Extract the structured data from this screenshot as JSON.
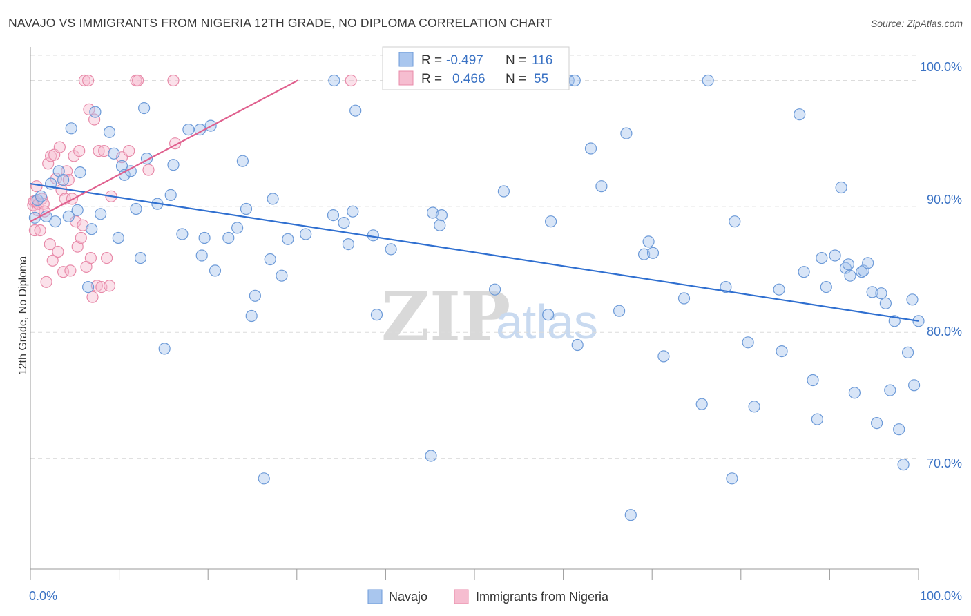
{
  "header": {
    "title": "NAVAJO VS IMMIGRANTS FROM NIGERIA 12TH GRADE, NO DIPLOMA CORRELATION CHART",
    "source": "Source: ZipAtlas.com"
  },
  "watermark": {
    "zip": "ZIP",
    "atlas": "atlas"
  },
  "legend_stats": [
    {
      "r_label": "R =",
      "r_value": "-0.497",
      "n_label": "N =",
      "n_value": "116"
    },
    {
      "r_label": "R =",
      "r_value": "0.466",
      "n_label": "N =",
      "n_value": "55"
    }
  ],
  "colors": {
    "navajo_fill": "#a9c6ee",
    "navajo_stroke": "#6c9ad8",
    "navajo_line": "#2f6fd0",
    "nigeria_fill": "#f6bdd0",
    "nigeria_stroke": "#e88aa9",
    "nigeria_line": "#e0608e",
    "tick_text": "#3a72c4",
    "grid": "#dcdcdc"
  },
  "chart_data": {
    "type": "scatter",
    "xlabel": "",
    "ylabel": "12th Grade, No Diploma",
    "x_ticks": [
      "0.0%",
      "100.0%"
    ],
    "y_ticks": [
      "100.0%",
      "90.0%",
      "80.0%",
      "70.0%"
    ],
    "y_tick_values": [
      100,
      90,
      80,
      70
    ],
    "xlim": [
      0,
      100
    ],
    "ylim": [
      60,
      102
    ],
    "grid": true,
    "legend_position": "bottom-center",
    "series": [
      {
        "name": "Navajo",
        "r": -0.497,
        "n": 116,
        "trend": {
          "x": [
            0,
            100
          ],
          "y": [
            91.8,
            80.9
          ]
        },
        "points": [
          [
            0.5,
            89.1
          ],
          [
            0.8,
            90.5
          ],
          [
            1.2,
            90.8
          ],
          [
            1.8,
            89.2
          ],
          [
            2.3,
            91.8
          ],
          [
            2.8,
            88.8
          ],
          [
            3.2,
            92.8
          ],
          [
            3.7,
            92.1
          ],
          [
            4.3,
            89.2
          ],
          [
            4.6,
            96.2
          ],
          [
            5.3,
            89.7
          ],
          [
            5.6,
            92.7
          ],
          [
            6.5,
            83.6
          ],
          [
            6.9,
            88.2
          ],
          [
            7.3,
            97.5
          ],
          [
            7.9,
            89.4
          ],
          [
            8.9,
            95.9
          ],
          [
            9.4,
            94.2
          ],
          [
            9.9,
            87.5
          ],
          [
            10.3,
            93.2
          ],
          [
            10.6,
            92.5
          ],
          [
            11.3,
            92.8
          ],
          [
            11.9,
            89.8
          ],
          [
            12.4,
            85.9
          ],
          [
            12.8,
            97.8
          ],
          [
            13.1,
            93.8
          ],
          [
            14.3,
            90.2
          ],
          [
            15.1,
            78.7
          ],
          [
            15.8,
            90.9
          ],
          [
            16.1,
            93.3
          ],
          [
            17.1,
            87.8
          ],
          [
            17.8,
            96.1
          ],
          [
            19.1,
            96.1
          ],
          [
            19.3,
            86.1
          ],
          [
            19.6,
            87.5
          ],
          [
            20.3,
            96.4
          ],
          [
            20.8,
            84.9
          ],
          [
            22.3,
            87.5
          ],
          [
            23.3,
            88.3
          ],
          [
            23.9,
            93.6
          ],
          [
            24.3,
            89.8
          ],
          [
            24.9,
            81.3
          ],
          [
            25.3,
            82.9
          ],
          [
            26.3,
            68.4
          ],
          [
            27.0,
            85.8
          ],
          [
            27.3,
            90.6
          ],
          [
            28.3,
            84.5
          ],
          [
            29.0,
            87.4
          ],
          [
            31.0,
            87.8
          ],
          [
            34.1,
            89.3
          ],
          [
            34.2,
            100.0
          ],
          [
            35.3,
            88.7
          ],
          [
            35.8,
            87.0
          ],
          [
            36.3,
            89.6
          ],
          [
            36.6,
            97.6
          ],
          [
            38.6,
            87.7
          ],
          [
            39.0,
            81.4
          ],
          [
            40.6,
            86.6
          ],
          [
            45.1,
            70.2
          ],
          [
            45.3,
            89.5
          ],
          [
            46.1,
            88.5
          ],
          [
            46.3,
            89.3
          ],
          [
            52.3,
            83.4
          ],
          [
            52.5,
            100.0
          ],
          [
            53.3,
            91.2
          ],
          [
            58.3,
            81.4
          ],
          [
            58.6,
            88.8
          ],
          [
            60.6,
            100.0
          ],
          [
            61.3,
            100.0
          ],
          [
            61.6,
            79.0
          ],
          [
            63.1,
            94.6
          ],
          [
            64.3,
            91.6
          ],
          [
            66.3,
            81.7
          ],
          [
            67.1,
            95.8
          ],
          [
            67.6,
            65.5
          ],
          [
            69.1,
            86.2
          ],
          [
            69.6,
            87.2
          ],
          [
            70.1,
            86.3
          ],
          [
            71.3,
            78.1
          ],
          [
            73.6,
            82.7
          ],
          [
            75.6,
            74.3
          ],
          [
            76.3,
            100.0
          ],
          [
            78.3,
            83.6
          ],
          [
            79.0,
            68.4
          ],
          [
            79.3,
            88.8
          ],
          [
            80.8,
            79.2
          ],
          [
            81.5,
            74.1
          ],
          [
            84.3,
            83.4
          ],
          [
            84.6,
            78.5
          ],
          [
            86.6,
            97.3
          ],
          [
            87.1,
            84.8
          ],
          [
            88.1,
            76.2
          ],
          [
            88.6,
            73.1
          ],
          [
            89.1,
            85.9
          ],
          [
            89.6,
            83.6
          ],
          [
            90.6,
            86.1
          ],
          [
            91.3,
            91.5
          ],
          [
            91.8,
            85.1
          ],
          [
            92.1,
            85.4
          ],
          [
            92.3,
            84.5
          ],
          [
            92.8,
            75.2
          ],
          [
            93.6,
            84.8
          ],
          [
            93.8,
            84.9
          ],
          [
            94.3,
            85.5
          ],
          [
            94.8,
            83.2
          ],
          [
            95.3,
            72.8
          ],
          [
            95.8,
            83.1
          ],
          [
            96.3,
            82.3
          ],
          [
            96.8,
            75.4
          ],
          [
            97.3,
            80.9
          ],
          [
            97.8,
            72.3
          ],
          [
            98.3,
            69.5
          ],
          [
            98.8,
            78.4
          ],
          [
            99.3,
            82.6
          ],
          [
            99.5,
            75.8
          ],
          [
            100.0,
            80.9
          ]
        ]
      },
      {
        "name": "Immigrants from Nigeria",
        "r": 0.466,
        "n": 55,
        "trend": {
          "x": [
            0,
            30.1
          ],
          "y": [
            88.8,
            100.0
          ]
        },
        "points": [
          [
            0.3,
            90.1
          ],
          [
            0.4,
            90.4
          ],
          [
            0.5,
            88.1
          ],
          [
            0.6,
            90.4
          ],
          [
            0.7,
            91.6
          ],
          [
            0.8,
            89.7
          ],
          [
            0.9,
            90.2
          ],
          [
            1.1,
            88.1
          ],
          [
            1.3,
            90.6
          ],
          [
            1.5,
            90.2
          ],
          [
            1.6,
            89.6
          ],
          [
            1.8,
            84.0
          ],
          [
            2.0,
            93.4
          ],
          [
            2.2,
            87.0
          ],
          [
            2.3,
            94.0
          ],
          [
            2.5,
            85.7
          ],
          [
            2.7,
            94.1
          ],
          [
            2.9,
            92.2
          ],
          [
            3.1,
            86.4
          ],
          [
            3.3,
            94.7
          ],
          [
            3.5,
            91.3
          ],
          [
            3.7,
            84.8
          ],
          [
            3.9,
            90.6
          ],
          [
            4.1,
            92.8
          ],
          [
            4.3,
            92.1
          ],
          [
            4.5,
            84.9
          ],
          [
            4.7,
            90.6
          ],
          [
            4.9,
            94.0
          ],
          [
            5.1,
            88.8
          ],
          [
            5.3,
            86.8
          ],
          [
            5.5,
            94.4
          ],
          [
            5.7,
            87.5
          ],
          [
            5.9,
            88.5
          ],
          [
            6.1,
            100.0
          ],
          [
            6.3,
            85.2
          ],
          [
            6.5,
            100.0
          ],
          [
            6.6,
            97.7
          ],
          [
            6.8,
            85.9
          ],
          [
            7.0,
            82.8
          ],
          [
            7.2,
            96.9
          ],
          [
            7.5,
            83.7
          ],
          [
            7.7,
            94.4
          ],
          [
            8.0,
            83.6
          ],
          [
            8.3,
            94.4
          ],
          [
            8.6,
            85.9
          ],
          [
            8.9,
            83.7
          ],
          [
            9.1,
            90.8
          ],
          [
            10.3,
            93.9
          ],
          [
            11.1,
            94.4
          ],
          [
            11.9,
            100.0
          ],
          [
            12.1,
            100.0
          ],
          [
            13.3,
            92.9
          ],
          [
            16.1,
            100.0
          ],
          [
            16.3,
            95.0
          ],
          [
            36.1,
            100.0
          ]
        ]
      }
    ]
  }
}
